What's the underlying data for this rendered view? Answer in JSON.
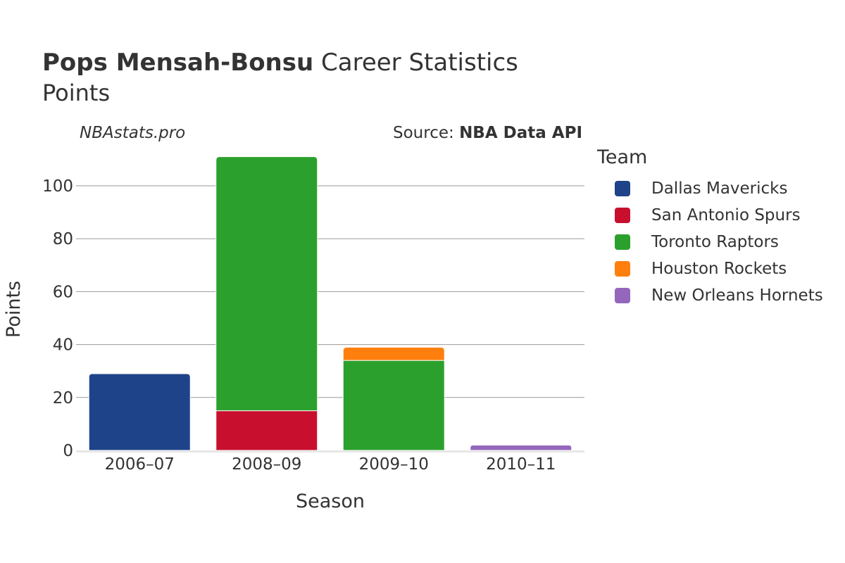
{
  "header": {
    "player": "Pops Mensah-Bonsu",
    "title_rest": " Career Statistics",
    "subtitle": "Points",
    "watermark": "NBAstats.pro",
    "source_prefix": "Source: ",
    "source_name": "NBA Data API"
  },
  "legend": {
    "title": "Team"
  },
  "chart_data": {
    "type": "bar",
    "stacked": true,
    "title": "Pops Mensah-Bonsu Career Statistics",
    "subtitle": "Points",
    "xlabel": "Season",
    "ylabel": "Points",
    "categories": [
      "2006–07",
      "2008–09",
      "2009–10",
      "2010–11"
    ],
    "ylim": [
      0,
      112
    ],
    "yticks": [
      0,
      20,
      40,
      60,
      80,
      100
    ],
    "grid": true,
    "legend_position": "right",
    "series": [
      {
        "name": "Dallas Mavericks",
        "color": "#1f4388",
        "values": [
          29,
          0,
          0,
          0
        ]
      },
      {
        "name": "San Antonio Spurs",
        "color": "#c8102e",
        "values": [
          0,
          15,
          0,
          0
        ]
      },
      {
        "name": "Toronto Raptors",
        "color": "#2ca02c",
        "values": [
          0,
          96,
          34,
          0
        ]
      },
      {
        "name": "Houston Rockets",
        "color": "#ff7f0e",
        "values": [
          0,
          0,
          5,
          0
        ]
      },
      {
        "name": "New Orleans Hornets",
        "color": "#9467bd",
        "values": [
          0,
          0,
          0,
          2
        ]
      }
    ]
  }
}
